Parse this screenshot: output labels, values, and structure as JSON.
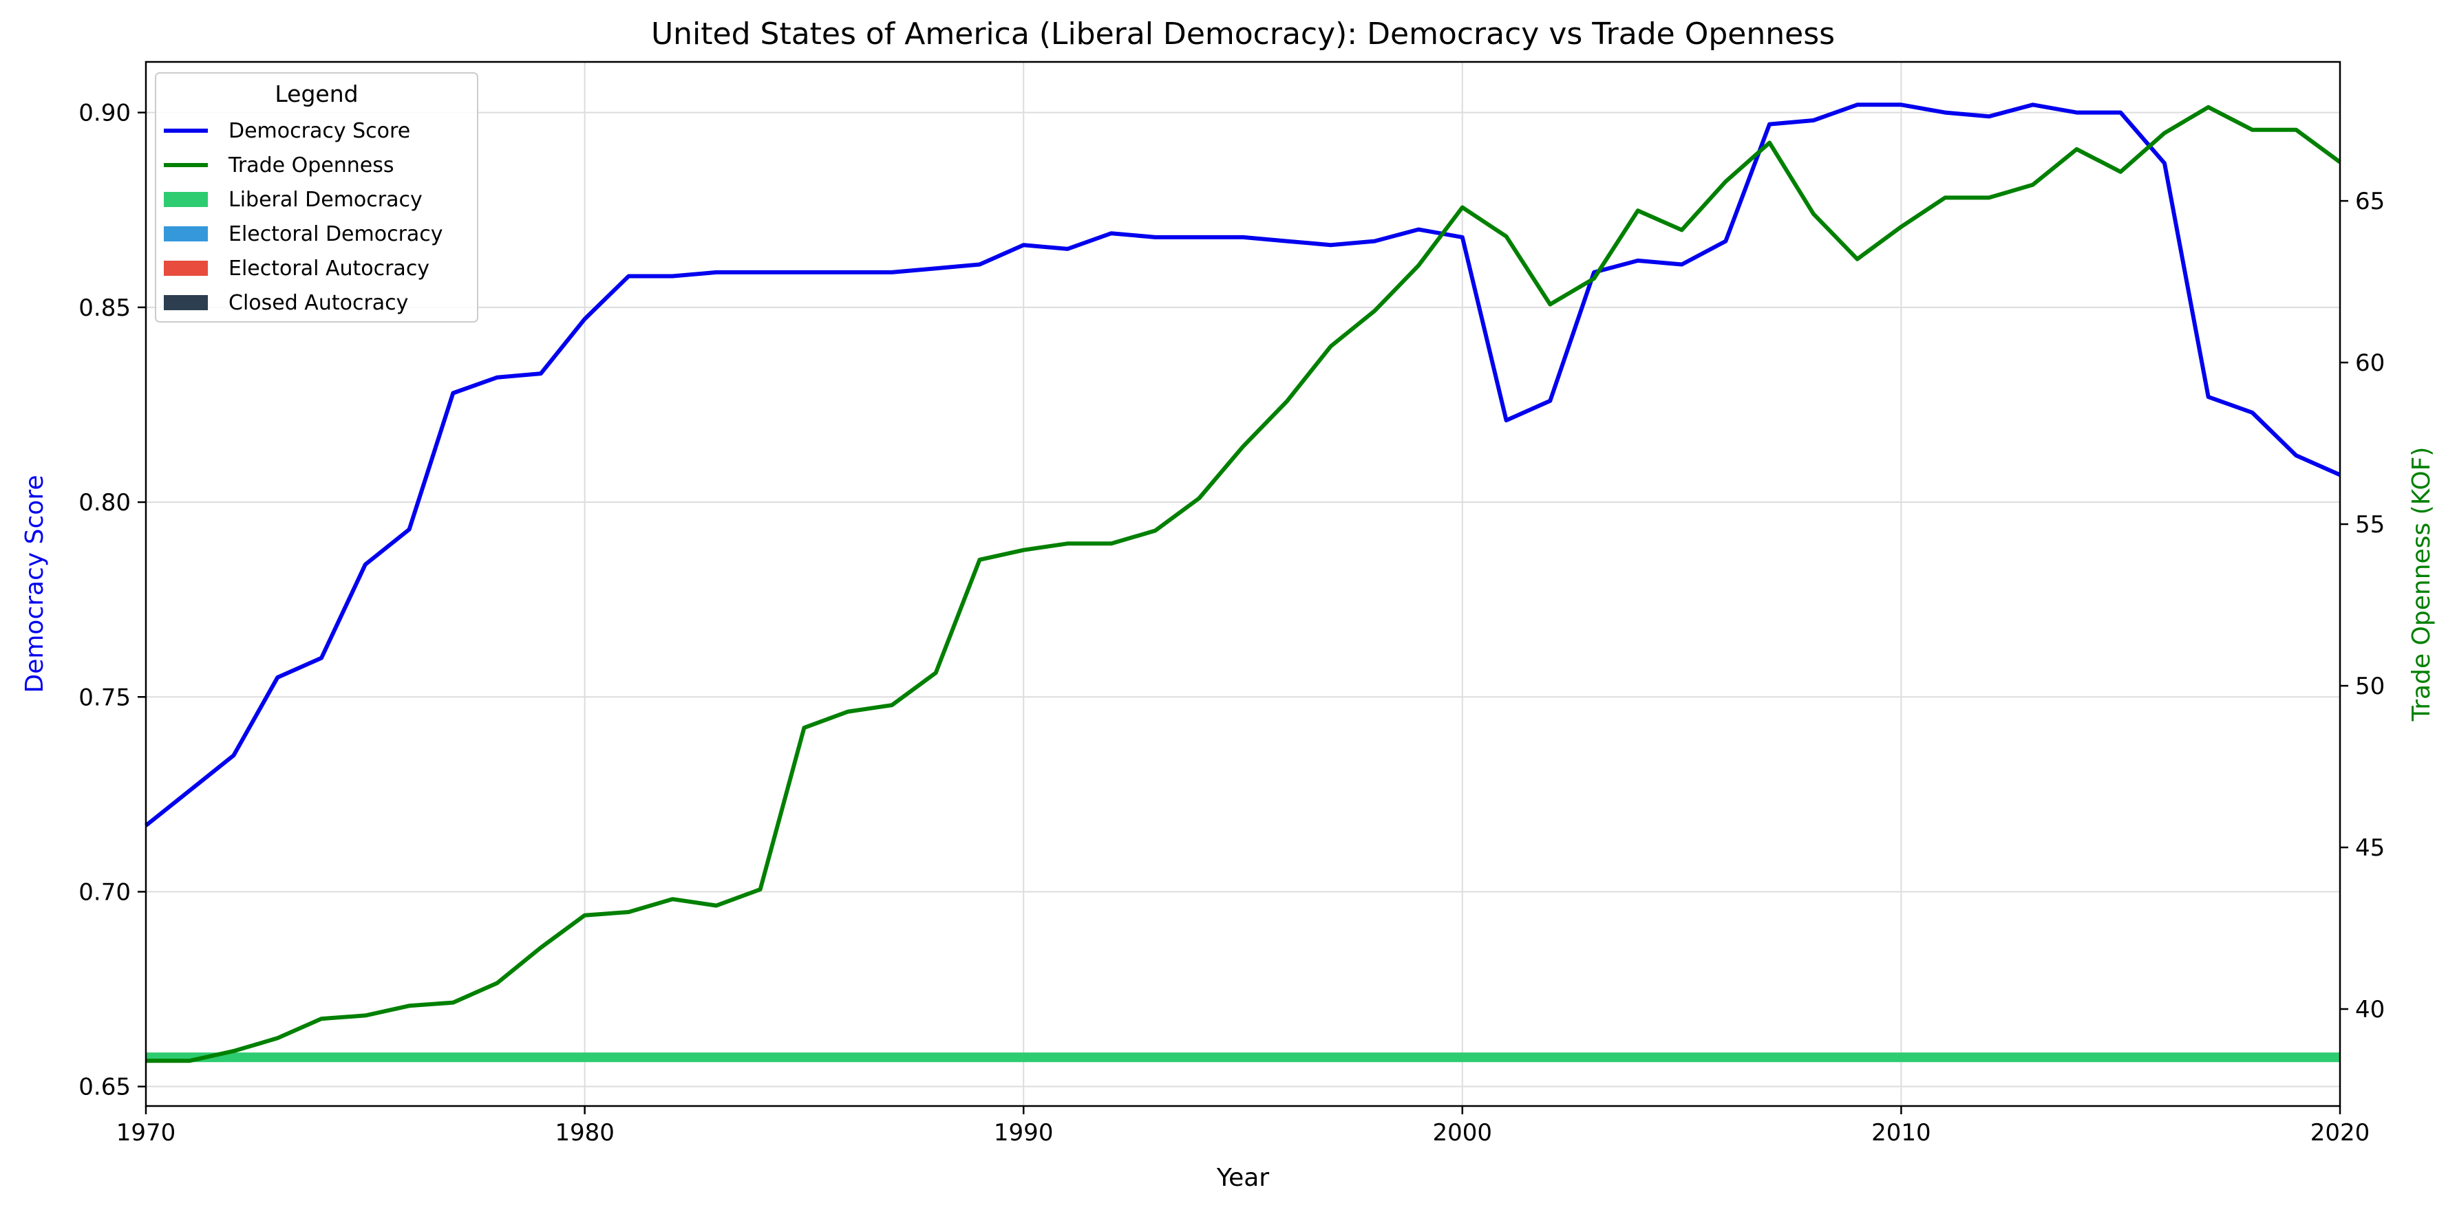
{
  "chart_data": {
    "type": "line",
    "title": "United States of America (Liberal Democracy): Democracy vs Trade Openness",
    "xlabel": "Year",
    "ylabel_left": "Democracy Score",
    "ylabel_right": "Trade Openness (KOF)",
    "xlim": [
      1970,
      2020
    ],
    "ylim_left": [
      0.645,
      0.913
    ],
    "ylim_right": [
      37.0,
      69.3
    ],
    "x_ticks": [
      1970,
      1980,
      1990,
      2000,
      2010,
      2020
    ],
    "y_left_ticks": [
      "0.65",
      "0.70",
      "0.75",
      "0.80",
      "0.85",
      "0.90"
    ],
    "y_right_ticks": [
      "40",
      "45",
      "50",
      "55",
      "60",
      "65"
    ],
    "grid": true,
    "legend_placement": "upper-left",
    "legend_title": "Legend",
    "colors": {
      "democracy": "#0000ee",
      "trade": "#008000",
      "liberal_democracy": "#2ecc71",
      "electoral_democracy": "#3498db",
      "electoral_autocracy": "#e74c3c",
      "closed_autocracy": "#2c3e50"
    },
    "legend": [
      {
        "label": "Democracy Score",
        "kind": "line",
        "color": "#0000ee"
      },
      {
        "label": "Trade Openness",
        "kind": "line",
        "color": "#008000"
      },
      {
        "label": "Liberal Democracy",
        "kind": "patch",
        "color": "#2ecc71"
      },
      {
        "label": "Electoral Democracy",
        "kind": "patch",
        "color": "#3498db"
      },
      {
        "label": "Electoral Autocracy",
        "kind": "patch",
        "color": "#e74c3c"
      },
      {
        "label": "Closed Autocracy",
        "kind": "patch",
        "color": "#2c3e50"
      }
    ],
    "x": [
      1970,
      1971,
      1972,
      1973,
      1974,
      1975,
      1976,
      1977,
      1978,
      1979,
      1980,
      1981,
      1982,
      1983,
      1984,
      1985,
      1986,
      1987,
      1988,
      1989,
      1990,
      1991,
      1992,
      1993,
      1994,
      1995,
      1996,
      1997,
      1998,
      1999,
      2000,
      2001,
      2002,
      2003,
      2004,
      2005,
      2006,
      2007,
      2008,
      2009,
      2010,
      2011,
      2012,
      2013,
      2014,
      2015,
      2016,
      2017,
      2018,
      2019,
      2020
    ],
    "series": [
      {
        "name": "Democracy Score",
        "axis": "left",
        "values": [
          0.717,
          0.726,
          0.735,
          0.755,
          0.76,
          0.784,
          0.793,
          0.828,
          0.832,
          0.833,
          0.847,
          0.858,
          0.858,
          0.859,
          0.859,
          0.859,
          0.859,
          0.859,
          0.86,
          0.861,
          0.866,
          0.865,
          0.869,
          0.868,
          0.868,
          0.868,
          0.867,
          0.866,
          0.867,
          0.87,
          0.868,
          0.821,
          0.826,
          0.859,
          0.862,
          0.861,
          0.867,
          0.897,
          0.898,
          0.902,
          0.902,
          0.9,
          0.899,
          0.902,
          0.9,
          0.9,
          0.887,
          0.827,
          0.823,
          0.812,
          0.807
        ]
      },
      {
        "name": "Trade Openness",
        "axis": "right",
        "values": [
          38.4,
          38.4,
          38.7,
          39.1,
          39.7,
          39.8,
          40.1,
          40.2,
          40.8,
          41.9,
          42.9,
          43.0,
          43.4,
          43.2,
          43.7,
          48.7,
          49.2,
          49.4,
          50.4,
          53.9,
          54.2,
          54.4,
          54.4,
          54.8,
          55.8,
          57.4,
          58.8,
          60.5,
          61.6,
          63.0,
          64.8,
          63.9,
          61.8,
          62.6,
          64.7,
          64.1,
          65.6,
          66.8,
          64.6,
          63.2,
          64.2,
          65.1,
          65.1,
          65.5,
          66.6,
          65.9,
          67.1,
          67.9,
          67.2,
          67.2,
          66.2
        ]
      }
    ],
    "regime_band": {
      "label": "Liberal Democracy",
      "from": 1970,
      "to": 2020,
      "level": 0.6575
    }
  }
}
